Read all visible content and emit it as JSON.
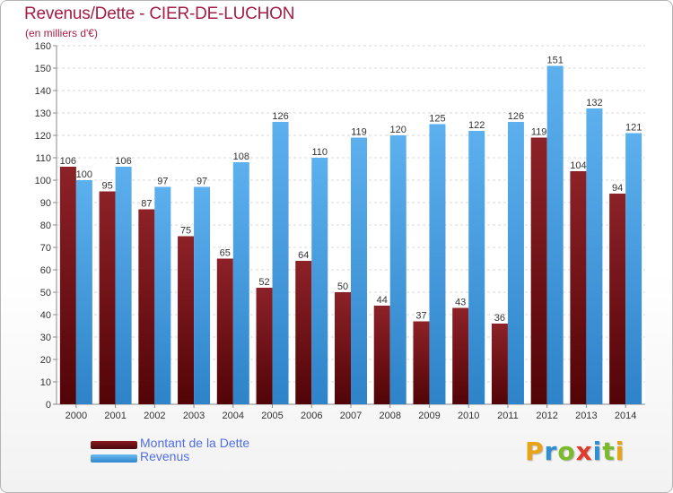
{
  "header": {
    "title": "Revenus/Dette - CIER-DE-LUCHON",
    "subtitle": "(en milliers d'€)"
  },
  "legend": {
    "items": [
      {
        "label": "Montant de la Dette",
        "color": "#6b1015"
      },
      {
        "label": "Revenus",
        "color": "#4aa3e6"
      }
    ]
  },
  "logo": {
    "text": "Proxiti",
    "letters": [
      {
        "ch": "P",
        "color": "#e8a317"
      },
      {
        "ch": "r",
        "color": "#2f8fd6"
      },
      {
        "ch": "o",
        "color": "#7cba2c"
      },
      {
        "ch": "x",
        "color": "#e23b2e"
      },
      {
        "ch": "i",
        "color": "#2f8fd6"
      },
      {
        "ch": "t",
        "color": "#7cba2c"
      },
      {
        "ch": "i",
        "color": "#e8a317"
      }
    ]
  },
  "chart_data": {
    "type": "bar",
    "title": "Revenus/Dette - CIER-DE-LUCHON",
    "subtitle": "(en milliers d'€)",
    "categories": [
      "2000",
      "2001",
      "2002",
      "2003",
      "2004",
      "2005",
      "2006",
      "2007",
      "2008",
      "2009",
      "2010",
      "2011",
      "2012",
      "2013",
      "2014"
    ],
    "series": [
      {
        "name": "Montant de la Dette",
        "color": "#6b1015",
        "values": [
          106,
          95,
          87,
          75,
          65,
          52,
          64,
          50,
          44,
          37,
          43,
          36,
          119,
          104,
          94
        ]
      },
      {
        "name": "Revenus",
        "color": "#4aa3e6",
        "values": [
          100,
          106,
          97,
          97,
          108,
          126,
          110,
          119,
          120,
          125,
          122,
          126,
          151,
          132,
          121
        ]
      }
    ],
    "ylim": [
      0,
      160
    ],
    "yticks": [
      0,
      10,
      20,
      30,
      40,
      50,
      60,
      70,
      80,
      90,
      100,
      110,
      120,
      130,
      140,
      150,
      160
    ],
    "grid": true,
    "legend_position": "bottom-left"
  }
}
